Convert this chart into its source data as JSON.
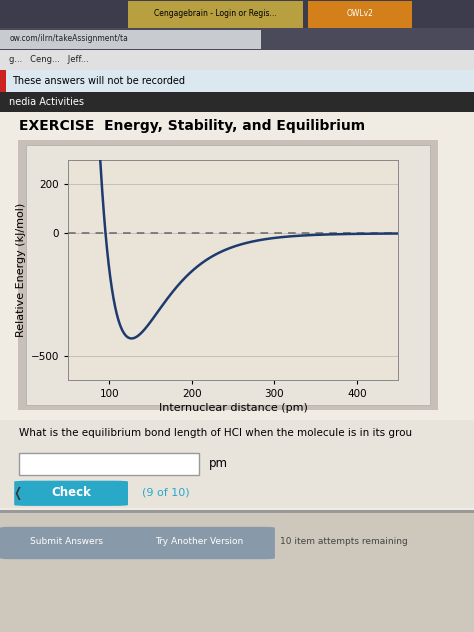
{
  "title": "EXERCISE  Energy, Stability, and Equilibrium",
  "xlabel": "Internuclear distance (pm)",
  "ylabel": "Relative Energy (kJ/mol)",
  "xlim": [
    50,
    450
  ],
  "ylim": [
    -600,
    300
  ],
  "xticks": [
    100,
    200,
    300,
    400
  ],
  "yticks": [
    -500,
    0,
    200
  ],
  "curve_color": "#1e3a6e",
  "dashed_color": "#666666",
  "plot_bg": "#eae4d8",
  "outer_panel_bg": "#d8d0c4",
  "page_bg": "#cec8bc",
  "question_text": "What is the equilibrium bond length of HCl when the molecule is in its grou",
  "check_btn_color": "#29a8c8",
  "counter_text": "(9 of 10)",
  "pm_label": "pm",
  "header_bg": "#2a2a2a",
  "header_text": "nedia Activities",
  "top_bar_bg": "#dce8f0",
  "top_bar_text": "These answers will not be recorded",
  "top_bar_accent": "#cc2222",
  "browser_bar_bg": "#3a3a4a",
  "browser_tab_bg": "#6a7080",
  "browser_url_bg": "#d0d4d8",
  "browser_url_text": "ow.com/ilrn/takeAssignment/ta",
  "browser_tab1_text": "Cengagebrain - Login or Regis...",
  "browser_tab2_text": "OWLv2",
  "bookmarks_bg": "#e8e8e8",
  "bookmarks_text": "g...   Ceng...   Jeff...",
  "bottom_btn_color": "#8899aa",
  "bottom_text": "10 item attempts remaining",
  "submit_text": "Submit Answers",
  "try_text": "Try Another Version",
  "grid_color": "#bbbbbb",
  "arrow_text": "❬"
}
